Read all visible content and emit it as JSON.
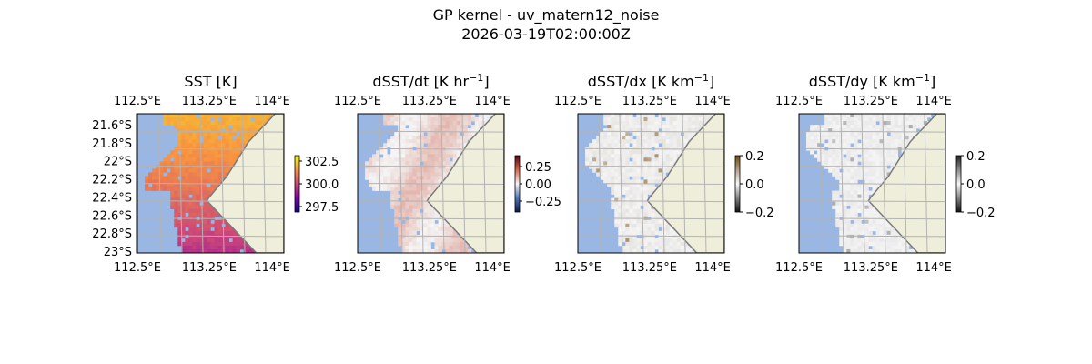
{
  "figure": {
    "title": "GP kernel - uv_matern12_noise",
    "subtitle": "2026-03-19T02:00:00Z"
  },
  "colors": {
    "ocean": "#9ab7e3",
    "land": "#eeeedb",
    "coast": "#7a7a7a",
    "grid": "#b3b3b3"
  },
  "chart_data": [
    {
      "type": "heatmap",
      "title": "SST [K]",
      "x_ticks": [
        "112.5°E",
        "113.25°E",
        "114°E"
      ],
      "y_ticks": [
        "21.6°S",
        "21.8°S",
        "22°S",
        "22.2°S",
        "22.4°S",
        "22.6°S",
        "22.8°S",
        "23°S"
      ],
      "show_y_ticks": true,
      "colormap": "plasma",
      "colorbar": {
        "ticks": [
          "302.5",
          "300.0",
          "297.5"
        ],
        "range": [
          297,
          303
        ]
      },
      "grid": true
    },
    {
      "type": "heatmap",
      "title": "dSST/dt [K hr",
      "title_sup": "−1",
      "title_end": "]",
      "x_ticks": [
        "112.5°E",
        "113.25°E",
        "114°E"
      ],
      "show_y_ticks": false,
      "colormap": "diverging-red-blue",
      "colorbar": {
        "ticks": [
          "0.25",
          "0.00",
          "−0.25"
        ],
        "range": [
          -0.4,
          0.4
        ]
      },
      "grid": true
    },
    {
      "type": "heatmap",
      "title": "dSST/dx [K km",
      "title_sup": "−1",
      "title_end": "]",
      "x_ticks": [
        "112.5°E",
        "113.25°E",
        "114°E"
      ],
      "show_y_ticks": false,
      "colormap": "diverging-brown-grey",
      "colorbar": {
        "ticks": [
          "0.2",
          "0.0",
          "−0.2"
        ],
        "range": [
          -0.2,
          0.2
        ]
      },
      "grid": true
    },
    {
      "type": "heatmap",
      "title": "dSST/dy [K km",
      "title_sup": "−1",
      "title_end": "]",
      "x_ticks": [
        "112.5°E",
        "113.25°E",
        "114°E"
      ],
      "show_y_ticks": false,
      "colormap": "diverging-grey",
      "colorbar": {
        "ticks": [
          "0.2",
          "0.0",
          "−0.2"
        ],
        "range": [
          -0.2,
          0.2
        ]
      },
      "grid": true
    }
  ]
}
